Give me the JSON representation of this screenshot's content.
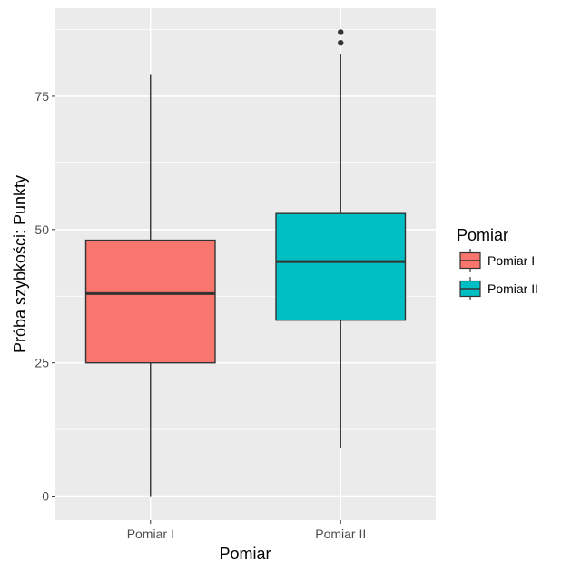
{
  "chart_data": {
    "type": "boxplot",
    "title": "",
    "xlabel": "Pomiar",
    "ylabel": "Próba szybkości: Punkty",
    "categories": [
      "Pomiar I",
      "Pomiar II"
    ],
    "ylim": [
      -4.5,
      91.5
    ],
    "y_ticks": [
      0,
      25,
      50,
      75
    ],
    "y_tick_labels": [
      "0",
      "25",
      "50",
      "75"
    ],
    "grid": true,
    "boxes": [
      {
        "category": "Pomiar I",
        "min": 0,
        "q1": 25,
        "median": 38,
        "q3": 48,
        "max": 79,
        "outliers": [],
        "color": "#F8766D"
      },
      {
        "category": "Pomiar II",
        "min": 9,
        "q1": 33,
        "median": 44,
        "q3": 53,
        "max": 83,
        "outliers": [
          85,
          87
        ],
        "color": "#00BFC4"
      }
    ],
    "legend": {
      "title": "Pomiar",
      "position": "right",
      "entries": [
        {
          "label": "Pomiar I",
          "color": "#F8766D"
        },
        {
          "label": "Pomiar II",
          "color": "#00BFC4"
        }
      ]
    },
    "panel_background": "#EBEBEB",
    "grid_color": "#FFFFFF"
  }
}
